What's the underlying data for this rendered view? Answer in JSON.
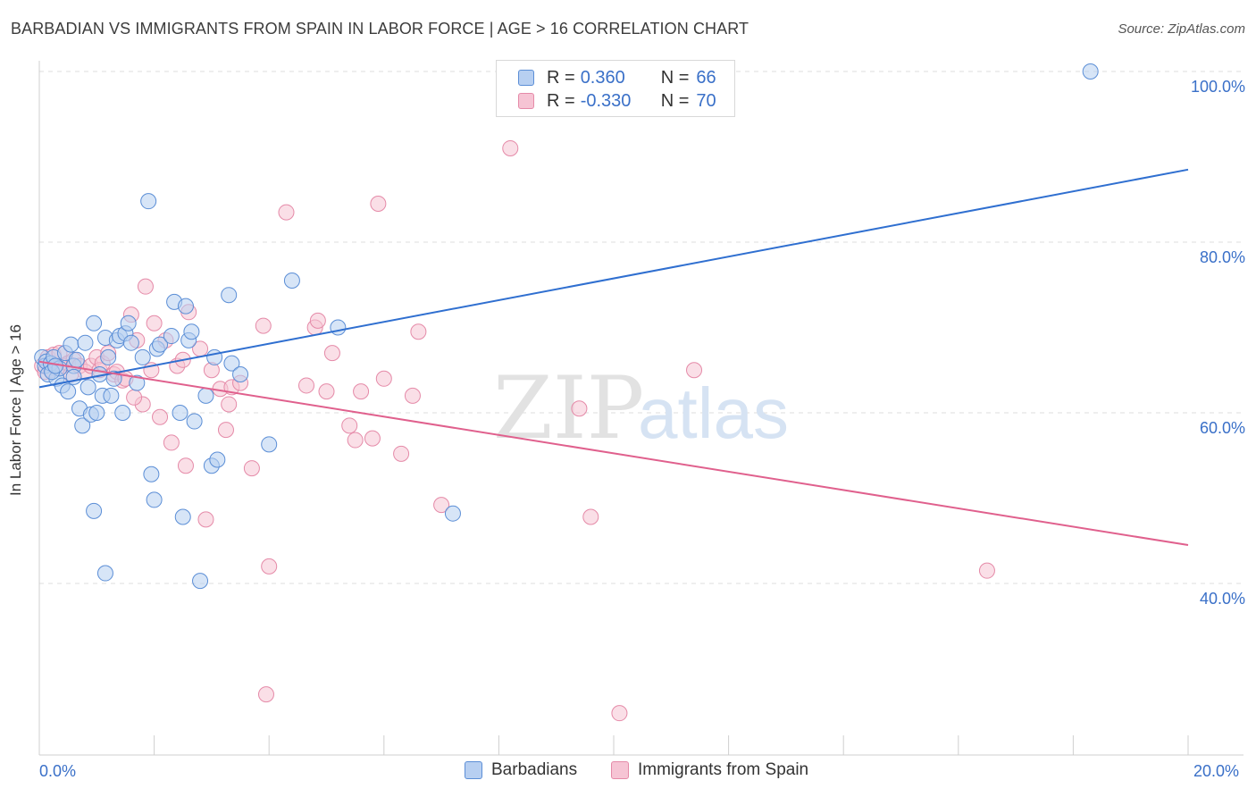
{
  "title": "BARBADIAN VS IMMIGRANTS FROM SPAIN IN LABOR FORCE | AGE > 16 CORRELATION CHART",
  "source": "Source: ZipAtlas.com",
  "watermark": {
    "zip": "ZIP",
    "atlas": "atlas"
  },
  "legend": {
    "series1": {
      "r_label": "R =",
      "r_value": "0.360",
      "n_label": "N =",
      "n_value": "66"
    },
    "series2": {
      "r_label": "R =",
      "r_value": "-0.330",
      "n_label": "N =",
      "n_value": "70"
    }
  },
  "colors": {
    "blue_fill": "#b7cff1",
    "blue_stroke": "#5b8ed6",
    "blue_line": "#2f6fd0",
    "pink_fill": "#f6c4d4",
    "pink_stroke": "#e58aa8",
    "pink_line": "#e0608d",
    "tick_text": "#3a70c8",
    "grid": "#dcdcdc"
  },
  "chart_data": {
    "type": "scatter",
    "title": "BARBADIAN VS IMMIGRANTS FROM SPAIN IN LABOR FORCE | AGE > 16 CORRELATION CHART",
    "xlabel": "",
    "ylabel": "In Labor Force | Age > 16",
    "xlim": [
      0,
      20
    ],
    "ylim": [
      22,
      102
    ],
    "x_tick_labels": [
      "0.0%",
      "20.0%"
    ],
    "y_ticks": [
      40,
      60,
      80,
      100
    ],
    "y_tick_labels": [
      "40.0%",
      "60.0%",
      "80.0%",
      "100.0%"
    ],
    "legend_position": "top-center",
    "series": [
      {
        "name": "Barbadians",
        "r": 0.36,
        "n": 66,
        "trend": {
          "x": [
            0,
            20
          ],
          "y": [
            63.0,
            88.5
          ]
        },
        "points": [
          [
            0.05,
            66.5
          ],
          [
            0.1,
            65.5
          ],
          [
            0.12,
            66.0
          ],
          [
            0.15,
            64.5
          ],
          [
            0.2,
            65.8
          ],
          [
            0.25,
            66.5
          ],
          [
            0.3,
            64.0
          ],
          [
            0.35,
            65.2
          ],
          [
            0.4,
            63.2
          ],
          [
            0.45,
            67.0
          ],
          [
            0.5,
            62.5
          ],
          [
            0.55,
            68.0
          ],
          [
            0.6,
            65.5
          ],
          [
            0.65,
            66.2
          ],
          [
            0.7,
            60.5
          ],
          [
            0.75,
            58.5
          ],
          [
            0.8,
            68.2
          ],
          [
            0.85,
            63.0
          ],
          [
            0.9,
            59.8
          ],
          [
            0.95,
            70.5
          ],
          [
            1.0,
            60.0
          ],
          [
            1.05,
            64.5
          ],
          [
            1.1,
            62.0
          ],
          [
            1.15,
            68.8
          ],
          [
            1.2,
            66.5
          ],
          [
            1.25,
            62.0
          ],
          [
            1.3,
            64.0
          ],
          [
            1.35,
            68.5
          ],
          [
            1.4,
            69.0
          ],
          [
            1.45,
            60.0
          ],
          [
            1.5,
            69.3
          ],
          [
            1.55,
            70.5
          ],
          [
            1.6,
            68.2
          ],
          [
            1.7,
            63.5
          ],
          [
            1.8,
            66.5
          ],
          [
            1.9,
            84.8
          ],
          [
            1.95,
            52.8
          ],
          [
            2.0,
            49.8
          ],
          [
            2.05,
            67.5
          ],
          [
            2.1,
            68.0
          ],
          [
            2.3,
            69.0
          ],
          [
            2.35,
            73.0
          ],
          [
            2.45,
            60.0
          ],
          [
            2.5,
            47.8
          ],
          [
            2.55,
            72.5
          ],
          [
            2.6,
            68.5
          ],
          [
            2.65,
            69.5
          ],
          [
            2.7,
            59.0
          ],
          [
            2.8,
            40.3
          ],
          [
            3.0,
            53.8
          ],
          [
            3.1,
            54.5
          ],
          [
            3.3,
            73.8
          ],
          [
            3.35,
            65.8
          ],
          [
            3.5,
            64.5
          ],
          [
            4.0,
            56.3
          ],
          [
            4.4,
            75.5
          ],
          [
            5.2,
            70.0
          ],
          [
            1.15,
            41.2
          ],
          [
            2.9,
            62.0
          ],
          [
            3.05,
            66.5
          ],
          [
            0.22,
            64.8
          ],
          [
            0.28,
            65.5
          ],
          [
            0.95,
            48.5
          ],
          [
            7.2,
            48.2
          ],
          [
            18.3,
            100.0
          ],
          [
            0.6,
            64.2
          ]
        ]
      },
      {
        "name": "Immigrants from Spain",
        "r": -0.33,
        "n": 70,
        "trend": {
          "x": [
            0,
            20
          ],
          "y": [
            66.0,
            44.5
          ]
        },
        "points": [
          [
            0.05,
            65.5
          ],
          [
            0.1,
            64.8
          ],
          [
            0.15,
            66.5
          ],
          [
            0.2,
            65.0
          ],
          [
            0.25,
            66.8
          ],
          [
            0.3,
            65.2
          ],
          [
            0.35,
            67.0
          ],
          [
            0.4,
            65.5
          ],
          [
            0.5,
            65.8
          ],
          [
            0.55,
            64.5
          ],
          [
            0.6,
            66.2
          ],
          [
            0.7,
            65.5
          ],
          [
            0.8,
            64.8
          ],
          [
            0.9,
            65.5
          ],
          [
            1.0,
            66.5
          ],
          [
            1.05,
            65.0
          ],
          [
            1.1,
            65.8
          ],
          [
            1.2,
            67.0
          ],
          [
            1.3,
            64.5
          ],
          [
            1.35,
            64.8
          ],
          [
            1.45,
            63.8
          ],
          [
            1.5,
            64.0
          ],
          [
            1.6,
            71.5
          ],
          [
            1.7,
            68.5
          ],
          [
            1.8,
            61.0
          ],
          [
            1.85,
            74.8
          ],
          [
            1.95,
            65.0
          ],
          [
            2.0,
            70.5
          ],
          [
            2.1,
            59.5
          ],
          [
            2.2,
            68.5
          ],
          [
            2.3,
            56.5
          ],
          [
            2.4,
            65.5
          ],
          [
            2.5,
            66.2
          ],
          [
            2.55,
            53.8
          ],
          [
            2.6,
            71.8
          ],
          [
            2.8,
            67.5
          ],
          [
            2.9,
            47.5
          ],
          [
            3.0,
            65.0
          ],
          [
            3.15,
            62.8
          ],
          [
            3.25,
            58.0
          ],
          [
            3.3,
            61.0
          ],
          [
            3.35,
            63.0
          ],
          [
            3.5,
            63.5
          ],
          [
            3.7,
            53.5
          ],
          [
            3.9,
            70.2
          ],
          [
            3.95,
            27.0
          ],
          [
            4.3,
            83.5
          ],
          [
            4.65,
            63.2
          ],
          [
            4.8,
            70.0
          ],
          [
            4.85,
            70.8
          ],
          [
            5.1,
            67.0
          ],
          [
            5.0,
            62.5
          ],
          [
            5.4,
            58.5
          ],
          [
            5.5,
            56.8
          ],
          [
            5.6,
            62.5
          ],
          [
            5.8,
            57.0
          ],
          [
            5.9,
            84.5
          ],
          [
            6.0,
            64.0
          ],
          [
            6.3,
            55.2
          ],
          [
            6.5,
            62.0
          ],
          [
            6.6,
            69.5
          ],
          [
            7.0,
            49.2
          ],
          [
            8.2,
            91.0
          ],
          [
            9.4,
            60.5
          ],
          [
            9.6,
            47.8
          ],
          [
            10.1,
            24.8
          ],
          [
            11.4,
            65.0
          ],
          [
            16.5,
            41.5
          ],
          [
            4.0,
            42.0
          ],
          [
            1.65,
            61.8
          ]
        ]
      }
    ]
  }
}
